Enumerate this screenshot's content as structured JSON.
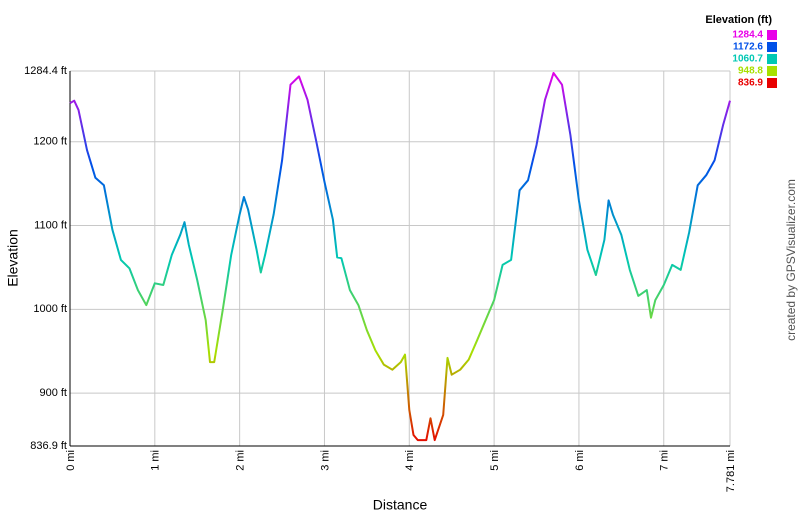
{
  "chart_data": {
    "type": "line",
    "x_label": "Distance",
    "y_label": "Elevation",
    "watermark": "created by GPSVisualizer.com",
    "xlim": [
      0,
      7.781
    ],
    "ylim": [
      836.9,
      1284.4
    ],
    "xticks": [
      {
        "value": 0,
        "label": "0 mi"
      },
      {
        "value": 1,
        "label": "1 mi"
      },
      {
        "value": 2,
        "label": "2 mi"
      },
      {
        "value": 3,
        "label": "3 mi"
      },
      {
        "value": 4,
        "label": "4 mi"
      },
      {
        "value": 5,
        "label": "5 mi"
      },
      {
        "value": 6,
        "label": "6 mi"
      },
      {
        "value": 7,
        "label": "7 mi"
      },
      {
        "value": 7.781,
        "label": "7.781 mi"
      }
    ],
    "yticks": [
      {
        "value": 836.9,
        "label": "836.9 ft"
      },
      {
        "value": 900,
        "label": "900 ft"
      },
      {
        "value": 1000,
        "label": "1000 ft"
      },
      {
        "value": 1100,
        "label": "1100 ft"
      },
      {
        "value": 1200,
        "label": "1200 ft"
      },
      {
        "value": 1284.4,
        "label": "1284.4 ft"
      }
    ],
    "grid": true,
    "legend": {
      "title": "Elevation (ft)",
      "position": "top-right",
      "items": [
        {
          "value": 1284.4,
          "color": "#e800e8"
        },
        {
          "value": 1172.6,
          "color": "#0050e8"
        },
        {
          "value": 1060.7,
          "color": "#00c8b4"
        },
        {
          "value": 948.8,
          "color": "#a8e000"
        },
        {
          "value": 836.9,
          "color": "#e80000"
        }
      ]
    },
    "x": [
      0,
      0.05,
      0.1,
      0.2,
      0.3,
      0.4,
      0.5,
      0.6,
      0.7,
      0.8,
      0.9,
      1.0,
      1.1,
      1.2,
      1.3,
      1.35,
      1.4,
      1.5,
      1.6,
      1.65,
      1.7,
      1.8,
      1.9,
      2.0,
      2.05,
      2.1,
      2.2,
      2.25,
      2.3,
      2.4,
      2.5,
      2.6,
      2.7,
      2.8,
      2.9,
      3.0,
      3.1,
      3.15,
      3.2,
      3.3,
      3.4,
      3.5,
      3.6,
      3.7,
      3.8,
      3.9,
      3.95,
      4.0,
      4.05,
      4.1,
      4.2,
      4.25,
      4.3,
      4.4,
      4.45,
      4.5,
      4.6,
      4.7,
      4.8,
      4.9,
      5.0,
      5.1,
      5.2,
      5.3,
      5.4,
      5.5,
      5.6,
      5.7,
      5.8,
      5.9,
      6.0,
      6.1,
      6.2,
      6.3,
      6.35,
      6.4,
      6.5,
      6.6,
      6.7,
      6.8,
      6.85,
      6.9,
      7.0,
      7.1,
      7.2,
      7.3,
      7.4,
      7.5,
      7.6,
      7.7,
      7.781
    ],
    "values": [
      1246,
      1249,
      1238,
      1190,
      1157,
      1148,
      1095,
      1059,
      1049,
      1023,
      1005,
      1031,
      1029,
      1065,
      1089,
      1104,
      1077,
      1035,
      987,
      937,
      937,
      999,
      1065,
      1113,
      1134,
      1119,
      1071,
      1044,
      1065,
      1113,
      1178,
      1268,
      1278,
      1250,
      1202,
      1152,
      1107,
      1062,
      1061,
      1023,
      1005,
      975,
      951,
      934,
      928,
      937,
      946,
      880,
      850,
      844,
      844,
      870,
      844,
      874,
      942,
      922,
      928,
      940,
      963,
      987,
      1011,
      1053,
      1059,
      1142,
      1154,
      1196,
      1250,
      1282,
      1268,
      1208,
      1130,
      1071,
      1041,
      1083,
      1130,
      1113,
      1089,
      1047,
      1016,
      1023,
      990,
      1011,
      1029,
      1053,
      1047,
      1092,
      1148,
      1160,
      1178,
      1220,
      1249
    ]
  }
}
